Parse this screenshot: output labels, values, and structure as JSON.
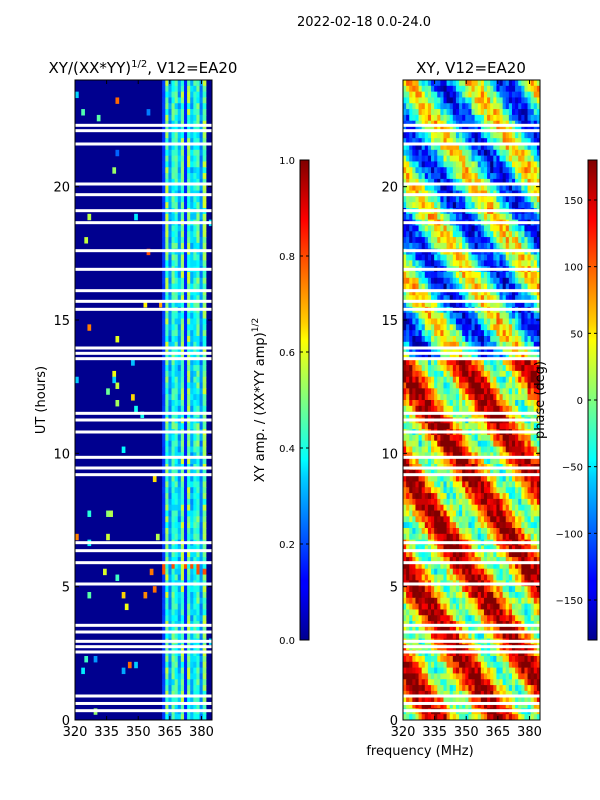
{
  "figure_title": "2022-02-18 0.0-24.0",
  "colors": {
    "background_fill": "#00008f",
    "gap_fill": "#ffffff",
    "frame": "#000000"
  },
  "chart_data": [
    {
      "type": "heatmap",
      "title": "XY/(XX*YY)^1/2, V12=EA20",
      "title_parts": {
        "main": "XY/(XX*YY)",
        "sup": "1/2",
        "suffix": ", V12=EA20"
      },
      "xlabel": "",
      "ylabel": "UT (hours)",
      "x_range": [
        320,
        385
      ],
      "y_range": [
        0,
        24
      ],
      "x_ticks": [
        320,
        335,
        350,
        365,
        380
      ],
      "x_tick_labels": [
        "320",
        "335",
        "350",
        "365",
        "380"
      ],
      "y_ticks": [
        0,
        5,
        10,
        15,
        20
      ],
      "y_tick_labels": [
        "0",
        "5",
        "10",
        "15",
        "20"
      ],
      "colormap": "jet",
      "colorbar": {
        "label": "XY amp. / (XX*YY amp)^1/2",
        "label_parts": {
          "main": "XY amp. / (XX*YY amp)",
          "sup": "1/2"
        },
        "range": [
          0.0,
          1.0
        ],
        "ticks": [
          0.0,
          0.2,
          0.4,
          0.6,
          0.8,
          1.0
        ],
        "tick_labels": [
          "0.0",
          "0.2",
          "0.4",
          "0.6",
          "0.8",
          "1.0"
        ]
      },
      "description": "Mostly near-zero normalized amplitude; a band of higher values (0.2-0.6) between ~362 and ~382 MHz",
      "band_freq_range_mhz": [
        362,
        382
      ]
    },
    {
      "type": "heatmap",
      "title": "XY, V12=EA20",
      "xlabel": "frequency (MHz)",
      "ylabel": "",
      "x_range": [
        320,
        385
      ],
      "y_range": [
        0,
        24
      ],
      "x_ticks": [
        320,
        335,
        350,
        365,
        380
      ],
      "x_tick_labels": [
        "320",
        "335",
        "350",
        "365",
        "380"
      ],
      "y_ticks": [
        0,
        5,
        10,
        15,
        20
      ],
      "y_tick_labels": [
        "0",
        "5",
        "10",
        "15",
        "20"
      ],
      "colormap": "jet",
      "colorbar": {
        "label": "phase (deg)",
        "range": [
          -180,
          180
        ],
        "ticks": [
          -150,
          -100,
          -50,
          0,
          50,
          100,
          150
        ],
        "tick_labels": [
          "−150",
          "−100",
          "−50",
          "0",
          "50",
          "100",
          "150"
        ]
      },
      "description": "XY phase in degrees; values vary over full range, mostly positive (warm) below ~13 h and mixed/negative (cool) above"
    }
  ],
  "gap_rows_ut_hours": [
    0.35,
    0.62,
    0.9,
    2.55,
    2.75,
    2.95,
    3.3,
    3.55,
    5.1,
    5.9,
    6.35,
    6.65,
    9.2,
    9.45,
    9.85,
    10.8,
    11.25,
    11.5,
    13.55,
    13.75,
    13.95,
    15.4,
    15.7,
    16.1,
    16.9,
    17.6,
    18.65,
    19.1,
    19.7,
    20.1,
    21.6,
    22.1,
    22.3
  ]
}
